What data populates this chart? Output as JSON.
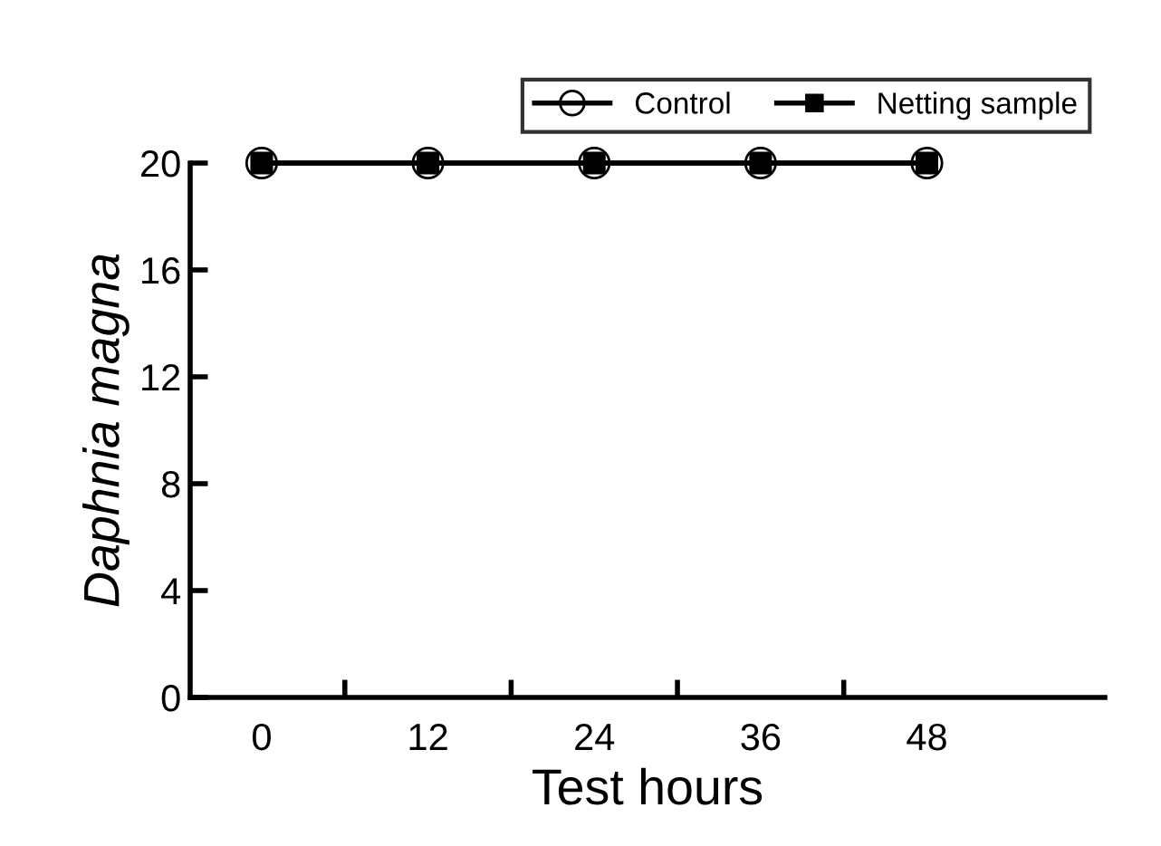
{
  "chart_data": {
    "type": "line",
    "xlabel": "Test hours",
    "ylabel": "Daphnia magna",
    "categories": [
      "0",
      "12",
      "24",
      "36",
      "48"
    ],
    "series": [
      {
        "name": "Control",
        "color": "#000000",
        "values": [
          20,
          20,
          20,
          20,
          20
        ],
        "marker": "circle"
      },
      {
        "name": "Netting sample",
        "color": "#000000",
        "values": [
          20,
          20,
          20,
          20,
          20
        ],
        "marker": "square"
      }
    ],
    "ylim": [
      0,
      20
    ],
    "yticks": [
      0,
      4,
      8,
      12,
      16,
      20
    ],
    "grid": false,
    "legend": "top right",
    "line_style": "solid"
  }
}
